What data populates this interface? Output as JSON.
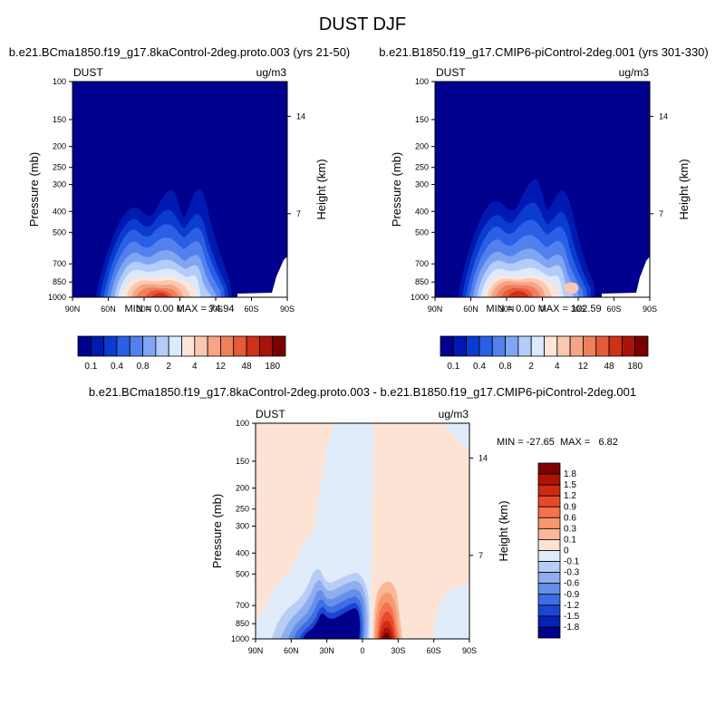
{
  "figure": {
    "title": "DUST DJF"
  },
  "panels": [
    {
      "id": "ctl",
      "case_title": "b.e21.BCma1850.f19_g17.8kaControl-2deg.proto.003 (yrs 21-50)",
      "left_label": "DUST",
      "right_label": "ug/m3",
      "ylabel": "Pressure (mb)",
      "ylabel_right": "Height (km)",
      "stats": "MIN =   0.00  MAX =  74.94"
    },
    {
      "id": "exp",
      "case_title": "b.e21.B1850.f19_g17.CMIP6-piControl-2deg.001 (yrs 301-330)",
      "left_label": "DUST",
      "right_label": "ug/m3",
      "ylabel": "Pressure (mb)",
      "ylabel_right": "Height (km)",
      "stats": "MIN =   0.00  MAX = 102.59"
    },
    {
      "id": "diff",
      "case_title": "b.e21.BCma1850.f19_g17.8kaControl-2deg.proto.003 - b.e21.B1850.f19_g17.CMIP6-piControl-2deg.001",
      "left_label": "DUST",
      "right_label": "ug/m3",
      "ylabel": "Pressure (mb)",
      "ylabel_right": "Height (km)",
      "stats": "MIN = -27.65  MAX =   6.82"
    }
  ],
  "chart_data": [
    {
      "type": "heatmap",
      "title": "b.e21.BCma1850.f19_g17.8kaControl-2deg.proto.003 (yrs 21-50)",
      "field": "DUST",
      "units": "ug/m3",
      "xlabel": "",
      "ylabel": "Pressure (mb)",
      "ylabel_right": "Height (km)",
      "x_ticks": [
        "90N",
        "60N",
        "30N",
        "0",
        "30S",
        "60S",
        "90S"
      ],
      "y_ticks": [
        "100",
        "150",
        "200",
        "250",
        "300",
        "400",
        "500",
        "700",
        "850",
        "1000"
      ],
      "y_ticks_right": [
        "14",
        "7"
      ],
      "xlim": [
        90,
        -90
      ],
      "ylim": [
        1000,
        100
      ],
      "min": 0.0,
      "max": 74.94,
      "colorbar_labels": [
        "0.1",
        "0.4",
        "0.8",
        "2",
        "4",
        "12",
        "48",
        "180"
      ],
      "colorbar_colors": [
        "#00008f",
        "#0019b0",
        "#0a3ccf",
        "#2a5fe6",
        "#5281ee",
        "#80a6f3",
        "#b3ccf9",
        "#dceafd",
        "#fde5d8",
        "#f9c7b2",
        "#f5a485",
        "#f07f5c",
        "#e65a38",
        "#cf3117",
        "#a8140b",
        "#7a0000"
      ],
      "max_value": 74.94
    },
    {
      "type": "heatmap",
      "title": "b.e21.B1850.f19_g17.CMIP6-piControl-2deg.001 (yrs 301-330)",
      "field": "DUST",
      "units": "ug/m3",
      "xlabel": "",
      "ylabel": "Pressure (mb)",
      "ylabel_right": "Height (km)",
      "x_ticks": [
        "90N",
        "60N",
        "30N",
        "0",
        "30S",
        "60S",
        "90S"
      ],
      "y_ticks": [
        "100",
        "150",
        "200",
        "250",
        "300",
        "400",
        "500",
        "700",
        "850",
        "1000"
      ],
      "y_ticks_right": [
        "14",
        "7"
      ],
      "xlim": [
        90,
        -90
      ],
      "ylim": [
        1000,
        100
      ],
      "min": 0.0,
      "max": 102.59,
      "colorbar_labels": [
        "0.1",
        "0.4",
        "0.8",
        "2",
        "4",
        "12",
        "48",
        "180"
      ],
      "colorbar_colors": [
        "#00008f",
        "#0019b0",
        "#0a3ccf",
        "#2a5fe6",
        "#5281ee",
        "#80a6f3",
        "#b3ccf9",
        "#dceafd",
        "#fde5d8",
        "#f9c7b2",
        "#f5a485",
        "#f07f5c",
        "#e65a38",
        "#cf3117",
        "#a8140b",
        "#7a0000"
      ]
    },
    {
      "type": "heatmap",
      "title": "b.e21.BCma1850.f19_g17.8kaControl-2deg.proto.003 - b.e21.B1850.f19_g17.CMIP6-piControl-2deg.001",
      "field": "DUST",
      "units": "ug/m3",
      "xlabel": "",
      "ylabel": "Pressure (mb)",
      "ylabel_right": "Height (km)",
      "x_ticks": [
        "90N",
        "60N",
        "30N",
        "0",
        "30S",
        "60S",
        "90S"
      ],
      "y_ticks": [
        "100",
        "150",
        "200",
        "250",
        "300",
        "400",
        "500",
        "700",
        "850",
        "1000"
      ],
      "y_ticks_right": [
        "14",
        "7"
      ],
      "xlim": [
        90,
        -90
      ],
      "ylim": [
        1000,
        100
      ],
      "min": -27.65,
      "max": 6.82,
      "colorbar_labels": [
        "1.8",
        "1.5",
        "1.2",
        "0.9",
        "0.6",
        "0.3",
        "0.1",
        "0",
        "-0.1",
        "-0.3",
        "-0.6",
        "-0.9",
        "-1.2",
        "-1.5",
        "-1.8"
      ],
      "colorbar_colors": [
        "#7f0000",
        "#ad1405",
        "#cf2a12",
        "#e8492b",
        "#f4724d",
        "#f7976f",
        "#f9b898",
        "#fde3d3",
        "#e1ecfb",
        "#b8cdf6",
        "#8eaef0",
        "#6590ea",
        "#3d6ee3",
        "#1b46d4",
        "#0822b4",
        "#00008c"
      ]
    }
  ]
}
